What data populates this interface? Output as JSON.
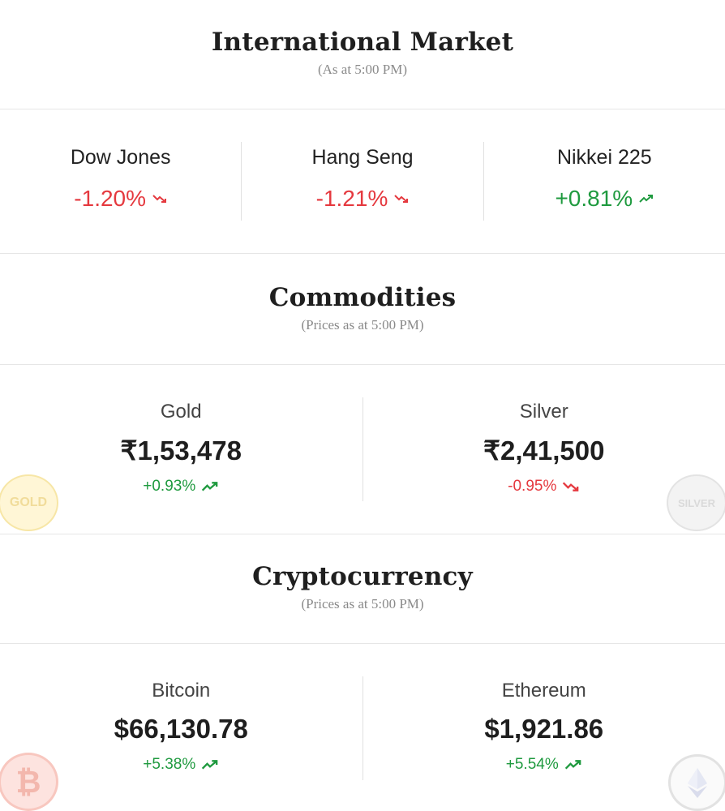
{
  "international": {
    "title": "International Market",
    "subtitle": "(As at 5:00 PM)",
    "indices": [
      {
        "name": "Dow Jones",
        "change": "-1.20%",
        "direction": "down"
      },
      {
        "name": "Hang Seng",
        "change": "-1.21%",
        "direction": "down"
      },
      {
        "name": "Nikkei 225",
        "change": "+0.81%",
        "direction": "up"
      }
    ]
  },
  "commodities": {
    "title": "Commodities",
    "subtitle": "(Prices as at 5:00 PM)",
    "items": [
      {
        "name": "Gold",
        "price": "₹1,53,478",
        "change": "+0.93%",
        "direction": "up",
        "coin_label": "GOLD"
      },
      {
        "name": "Silver",
        "price": "₹2,41,500",
        "change": "-0.95%",
        "direction": "down",
        "coin_label": "SILVER"
      }
    ]
  },
  "crypto": {
    "title": "Cryptocurrency",
    "subtitle": "(Prices as at 5:00 PM)",
    "items": [
      {
        "name": "Bitcoin",
        "price": "$66,130.78",
        "change": "+5.38%",
        "direction": "up",
        "coin_label": "₿"
      },
      {
        "name": "Ethereum",
        "price": "$1,921.86",
        "change": "+5.54%",
        "direction": "up"
      }
    ]
  },
  "colors": {
    "up": "#1f9a3f",
    "down": "#e5393f",
    "gold_coin": "#fff6d6",
    "silver_coin": "#f3f3f3",
    "bitcoin_coin": "#fde3df"
  },
  "icons": {
    "up": "trend-up-icon",
    "down": "trend-down-icon"
  }
}
